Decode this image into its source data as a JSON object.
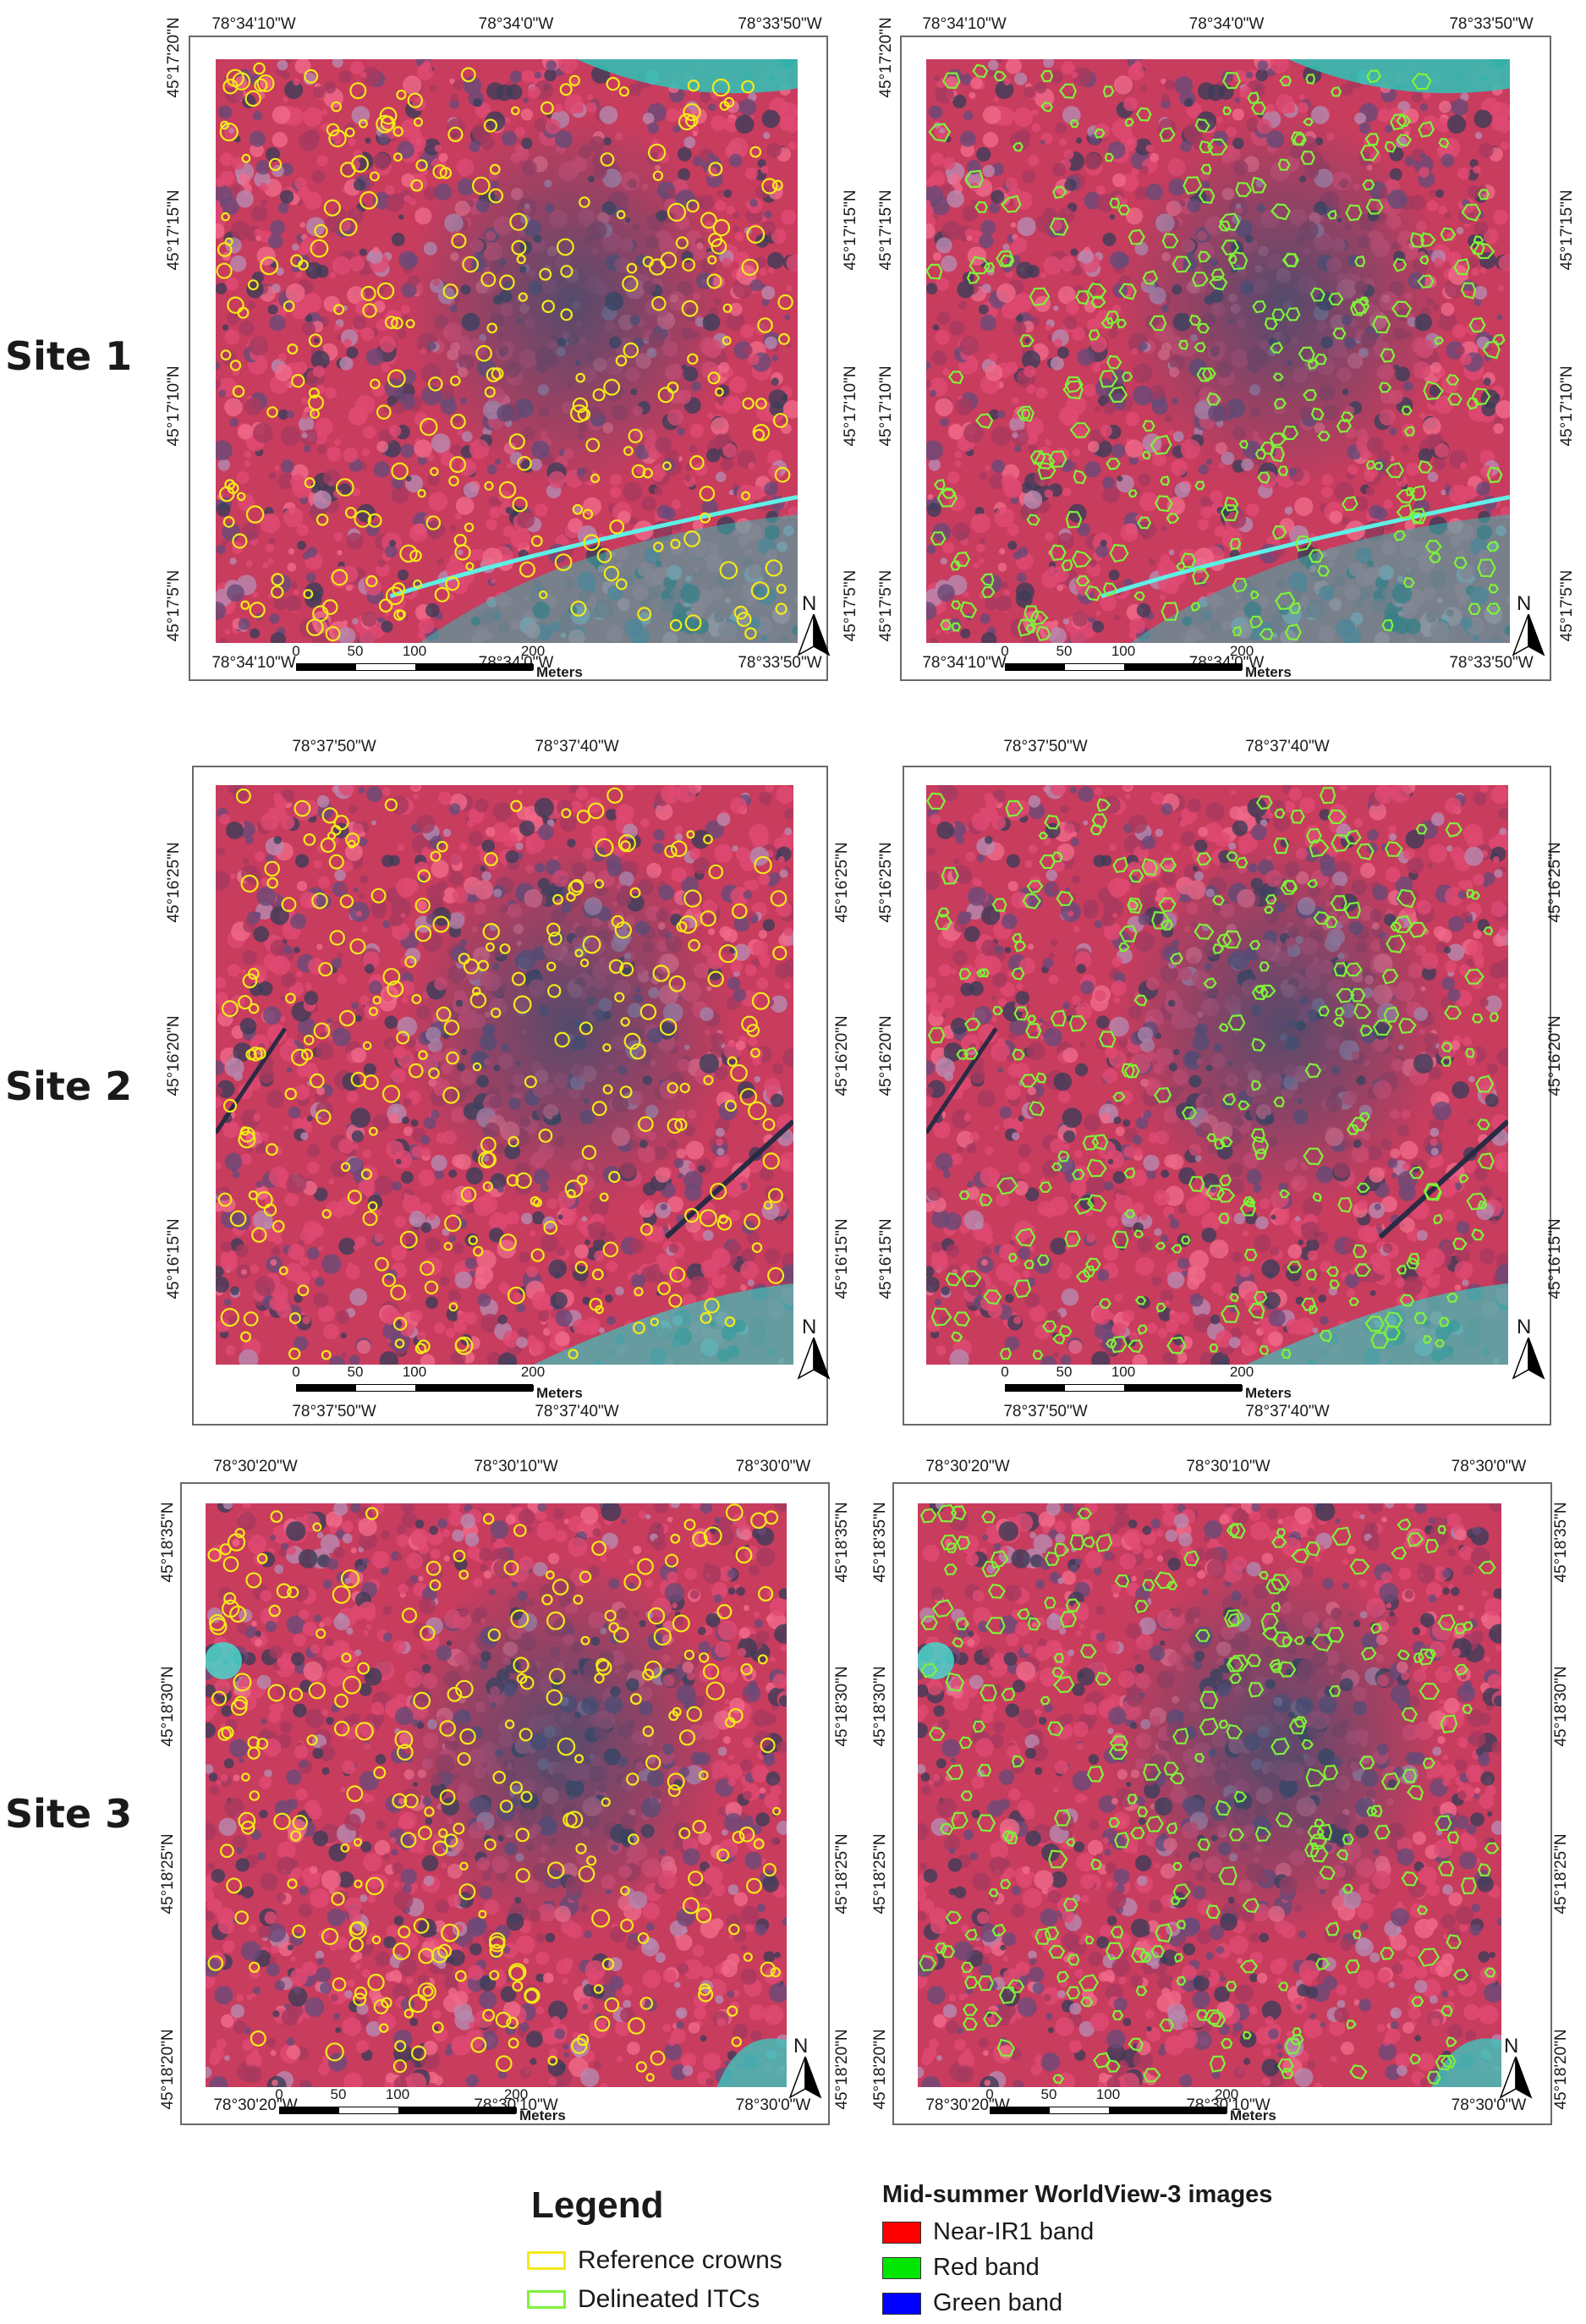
{
  "site_labels": [
    "Site 1",
    "Site 2",
    "Site 3"
  ],
  "panels": [
    {
      "site": 1,
      "overlay": "reference",
      "crown_color": "#f2ea1a",
      "top_ticks": [
        "78°34'10\"W",
        "78°34'0\"W",
        "78°33'50\"W"
      ],
      "bottom_ticks": [
        "78°34'10\"W",
        "78°34'0\"W",
        "78°33'50\"W"
      ],
      "left_ticks": [
        "45°17'20\"N",
        "45°17'15\"N",
        "45°17'10\"N",
        "45°17'5\"N"
      ],
      "right_ticks": [
        "45°17'15\"N",
        "45°17'10\"N",
        "45°17'5\"N"
      ],
      "scale_labels": [
        "0",
        "50",
        "100",
        "200"
      ],
      "scale_unit": "Meters",
      "north": "N"
    },
    {
      "site": 1,
      "overlay": "delineated",
      "crown_color": "#7ff23a",
      "top_ticks": [
        "78°34'10\"W",
        "78°34'0\"W",
        "78°33'50\"W"
      ],
      "bottom_ticks": [
        "78°34'10\"W",
        "78°34'0\"W",
        "78°33'50\"W"
      ],
      "left_ticks": [
        "45°17'20\"N",
        "45°17'15\"N",
        "45°17'10\"N",
        "45°17'5\"N"
      ],
      "right_ticks": [
        "45°17'15\"N",
        "45°17'10\"N",
        "45°17'5\"N"
      ],
      "scale_labels": [
        "0",
        "50",
        "100",
        "200"
      ],
      "scale_unit": "Meters",
      "north": "N"
    },
    {
      "site": 2,
      "overlay": "reference",
      "crown_color": "#f2ea1a",
      "top_ticks": [
        "78°37'50\"W",
        "78°37'40\"W"
      ],
      "bottom_ticks": [
        "78°37'50\"W",
        "78°37'40\"W"
      ],
      "left_ticks": [
        "45°16'25\"N",
        "45°16'20\"N",
        "45°16'15\"N"
      ],
      "right_ticks": [
        "45°16'25\"N",
        "45°16'20\"N",
        "45°16'15\"N"
      ],
      "scale_labels": [
        "0",
        "50",
        "100",
        "200"
      ],
      "scale_unit": "Meters",
      "north": "N"
    },
    {
      "site": 2,
      "overlay": "delineated",
      "crown_color": "#7ff23a",
      "top_ticks": [
        "78°37'50\"W",
        "78°37'40\"W"
      ],
      "bottom_ticks": [
        "78°37'50\"W",
        "78°37'40\"W"
      ],
      "left_ticks": [
        "45°16'25\"N",
        "45°16'20\"N",
        "45°16'15\"N"
      ],
      "right_ticks": [
        "45°16'25\"N",
        "45°16'20\"N",
        "45°16'15\"N"
      ],
      "scale_labels": [
        "0",
        "50",
        "100",
        "200"
      ],
      "scale_unit": "Meters",
      "north": "N"
    },
    {
      "site": 3,
      "overlay": "reference",
      "crown_color": "#f2ea1a",
      "top_ticks": [
        "78°30'20\"W",
        "78°30'10\"W",
        "78°30'0\"W"
      ],
      "bottom_ticks": [
        "78°30'20\"W",
        "78°30'10\"W",
        "78°30'0\"W"
      ],
      "left_ticks": [
        "45°18'35\"N",
        "45°18'30\"N",
        "45°18'25\"N",
        "45°18'20\"N"
      ],
      "right_ticks": [
        "45°18'35\"N",
        "45°18'30\"N",
        "45°18'25\"N",
        "45°18'20\"N"
      ],
      "scale_labels": [
        "0",
        "50",
        "100",
        "200"
      ],
      "scale_unit": "Meters",
      "north": "N"
    },
    {
      "site": 3,
      "overlay": "delineated",
      "crown_color": "#7ff23a",
      "top_ticks": [
        "78°30'20\"W",
        "78°30'10\"W",
        "78°30'0\"W"
      ],
      "bottom_ticks": [
        "78°30'20\"W",
        "78°30'10\"W",
        "78°30'0\"W"
      ],
      "left_ticks": [
        "45°18'35\"N",
        "45°18'30\"N",
        "45°18'25\"N",
        "45°18'20\"N"
      ],
      "right_ticks": [
        "45°18'35\"N",
        "45°18'30\"N",
        "45°18'25\"N",
        "45°18'20\"N"
      ],
      "scale_labels": [
        "0",
        "50",
        "100",
        "200"
      ],
      "scale_unit": "Meters",
      "north": "N"
    }
  ],
  "legend": {
    "title": "Legend",
    "items": [
      {
        "label": "Reference crowns",
        "color": "#f2ea1a"
      },
      {
        "label": "Delineated ITCs",
        "color": "#7ff23a"
      }
    ]
  },
  "bands": {
    "title": "Mid-summer WorldView-3 images",
    "items": [
      {
        "label": "Near-IR1 band",
        "color": "#ff0000"
      },
      {
        "label": "Red band",
        "color": "#00e600"
      },
      {
        "label": "Green band",
        "color": "#0000ff"
      }
    ]
  }
}
